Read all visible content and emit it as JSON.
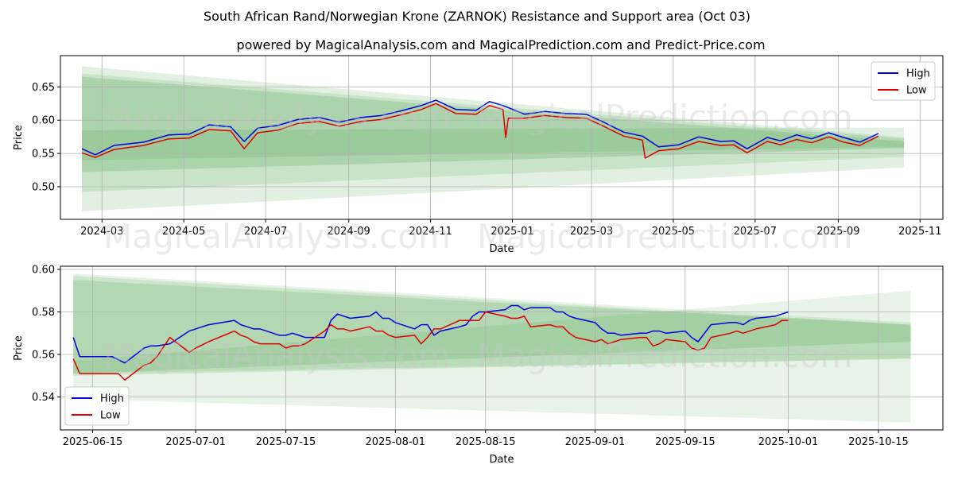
{
  "header": {
    "title": "South African Rand/Norwegian Krone (ZARNOK) Resistance and Support area (Oct 03)",
    "subtitle": "powered by MagicalAnalysis.com and MagicalPrediction.com and Predict-Price.com"
  },
  "watermarks": [
    "MagicalAnalysis.com",
    "MagicalPrediction.com"
  ],
  "colors": {
    "high": "#0000dd",
    "low": "#dd0000",
    "band": "#3a9a3a",
    "grid": "#b0b0b0"
  },
  "chart_data": [
    {
      "type": "line",
      "title": "",
      "xlabel": "Date",
      "ylabel": "Price",
      "xlim": [
        "2024-01-30",
        "2025-11-18"
      ],
      "ylim": [
        0.451,
        0.697
      ],
      "yticks": [
        0.5,
        0.55,
        0.6,
        0.65
      ],
      "ytick_labels": [
        "0.50",
        "0.55",
        "0.60",
        "0.65"
      ],
      "xticks": [
        "2024-03-01",
        "2024-05-01",
        "2024-07-01",
        "2024-09-01",
        "2024-11-01",
        "2025-01-01",
        "2025-03-01",
        "2025-05-01",
        "2025-07-01",
        "2025-09-01",
        "2025-11-01"
      ],
      "xtick_labels": [
        "2024-03",
        "2024-05",
        "2024-07",
        "2024-09",
        "2024-11",
        "2025-01",
        "2025-03",
        "2025-05",
        "2025-07",
        "2025-09",
        "2025-11"
      ],
      "legend": {
        "position": "top-right",
        "entries": [
          "High",
          "Low"
        ]
      },
      "grid": true,
      "bands": [
        {
          "x": [
            "2024-02-15",
            "2025-10-20"
          ],
          "upper": [
            0.681,
            0.574
          ],
          "lower": [
            0.463,
            0.529
          ],
          "opacity": 0.15
        },
        {
          "x": [
            "2024-02-15",
            "2025-10-20"
          ],
          "upper": [
            0.67,
            0.572
          ],
          "lower": [
            0.492,
            0.545
          ],
          "opacity": 0.15
        },
        {
          "x": [
            "2024-02-15",
            "2025-10-20"
          ],
          "upper": [
            0.665,
            0.568
          ],
          "lower": [
            0.522,
            0.558
          ],
          "opacity": 0.2
        },
        {
          "x": [
            "2024-02-15",
            "2025-10-20"
          ],
          "upper": [
            0.585,
            0.589
          ],
          "lower": [
            0.54,
            0.56
          ],
          "opacity": 0.15
        }
      ],
      "series": [
        {
          "name": "High",
          "color": "#0000dd",
          "x": [
            "2024-02-15",
            "2024-02-25",
            "2024-03-10",
            "2024-04-01",
            "2024-04-20",
            "2024-05-05",
            "2024-05-20",
            "2024-06-05",
            "2024-06-15",
            "2024-06-25",
            "2024-07-10",
            "2024-07-25",
            "2024-08-10",
            "2024-08-25",
            "2024-09-10",
            "2024-09-25",
            "2024-10-10",
            "2024-10-25",
            "2024-11-05",
            "2024-11-20",
            "2024-12-05",
            "2024-12-15",
            "2024-12-25",
            "2025-01-10",
            "2025-01-25",
            "2025-02-10",
            "2025-02-25",
            "2025-03-10",
            "2025-03-25",
            "2025-04-08",
            "2025-04-20",
            "2025-05-05",
            "2025-05-20",
            "2025-06-05",
            "2025-06-15",
            "2025-06-25",
            "2025-07-10",
            "2025-07-20",
            "2025-08-01",
            "2025-08-12",
            "2025-08-25",
            "2025-09-05",
            "2025-09-17",
            "2025-10-01"
          ],
          "values": [
            0.557,
            0.548,
            0.562,
            0.567,
            0.578,
            0.579,
            0.593,
            0.59,
            0.568,
            0.588,
            0.592,
            0.601,
            0.604,
            0.597,
            0.604,
            0.607,
            0.614,
            0.622,
            0.63,
            0.616,
            0.615,
            0.628,
            0.622,
            0.609,
            0.613,
            0.61,
            0.609,
            0.597,
            0.582,
            0.576,
            0.56,
            0.563,
            0.575,
            0.568,
            0.569,
            0.557,
            0.574,
            0.569,
            0.578,
            0.572,
            0.581,
            0.574,
            0.567,
            0.58
          ]
        },
        {
          "name": "Low",
          "color": "#dd0000",
          "x": [
            "2024-02-15",
            "2024-02-25",
            "2024-03-10",
            "2024-04-01",
            "2024-04-20",
            "2024-05-05",
            "2024-05-20",
            "2024-06-05",
            "2024-06-15",
            "2024-06-25",
            "2024-07-10",
            "2024-07-25",
            "2024-08-10",
            "2024-08-25",
            "2024-09-10",
            "2024-09-25",
            "2024-10-10",
            "2024-10-25",
            "2024-11-05",
            "2024-11-20",
            "2024-12-05",
            "2024-12-15",
            "2024-12-25",
            "2024-12-27",
            "2024-12-29",
            "2025-01-10",
            "2025-01-25",
            "2025-02-10",
            "2025-02-25",
            "2025-03-10",
            "2025-03-25",
            "2025-04-08",
            "2025-04-10",
            "2025-04-20",
            "2025-05-05",
            "2025-05-20",
            "2025-06-05",
            "2025-06-15",
            "2025-06-25",
            "2025-07-10",
            "2025-07-20",
            "2025-08-01",
            "2025-08-12",
            "2025-08-25",
            "2025-09-05",
            "2025-09-17",
            "2025-10-01"
          ],
          "values": [
            0.551,
            0.544,
            0.556,
            0.562,
            0.572,
            0.573,
            0.586,
            0.584,
            0.557,
            0.581,
            0.585,
            0.595,
            0.598,
            0.591,
            0.598,
            0.601,
            0.608,
            0.616,
            0.625,
            0.61,
            0.609,
            0.622,
            0.616,
            0.574,
            0.603,
            0.603,
            0.607,
            0.604,
            0.603,
            0.591,
            0.576,
            0.57,
            0.543,
            0.554,
            0.557,
            0.568,
            0.562,
            0.563,
            0.551,
            0.568,
            0.563,
            0.571,
            0.566,
            0.575,
            0.567,
            0.562,
            0.576
          ]
        }
      ]
    },
    {
      "type": "line",
      "title": "",
      "xlabel": "Date",
      "ylabel": "Price",
      "xlim": [
        "2025-06-10",
        "2025-10-25"
      ],
      "ylim": [
        0.5245,
        0.6015
      ],
      "yticks": [
        0.54,
        0.56,
        0.58,
        0.6
      ],
      "ytick_labels": [
        "0.54",
        "0.56",
        "0.58",
        "0.60"
      ],
      "xticks": [
        "2025-06-15",
        "2025-07-01",
        "2025-07-15",
        "2025-08-01",
        "2025-08-15",
        "2025-09-01",
        "2025-09-15",
        "2025-10-01",
        "2025-10-15"
      ],
      "xtick_labels": [
        "2025-06-15",
        "2025-07-01",
        "2025-07-15",
        "2025-08-01",
        "2025-08-15",
        "2025-09-01",
        "2025-09-15",
        "2025-10-01",
        "2025-10-15"
      ],
      "legend": {
        "position": "bottom-left",
        "entries": [
          "High",
          "Low"
        ]
      },
      "grid": true,
      "bands": [
        {
          "x": [
            "2025-06-12",
            "2025-10-20"
          ],
          "upper": [
            0.598,
            0.575
          ],
          "lower": [
            0.539,
            0.528
          ],
          "opacity": 0.12
        },
        {
          "x": [
            "2025-06-12",
            "2025-10-20"
          ],
          "upper": [
            0.597,
            0.574
          ],
          "lower": [
            0.55,
            0.558
          ],
          "opacity": 0.15
        },
        {
          "x": [
            "2025-06-12",
            "2025-10-20"
          ],
          "upper": [
            0.595,
            0.574
          ],
          "lower": [
            0.551,
            0.566
          ],
          "opacity": 0.18
        },
        {
          "x": [
            "2025-06-12",
            "2025-10-20"
          ],
          "upper": [
            0.557,
            0.59
          ],
          "lower": [
            0.551,
            0.558
          ],
          "opacity": 0.12
        }
      ],
      "series": [
        {
          "name": "High",
          "color": "#0000dd",
          "x": [
            "2025-06-12",
            "2025-06-13",
            "2025-06-16",
            "2025-06-18",
            "2025-06-20",
            "2025-06-23",
            "2025-06-24",
            "2025-06-25",
            "2025-06-27",
            "2025-06-30",
            "2025-07-01",
            "2025-07-03",
            "2025-07-07",
            "2025-07-08",
            "2025-07-09",
            "2025-07-10",
            "2025-07-11",
            "2025-07-14",
            "2025-07-15",
            "2025-07-16",
            "2025-07-17",
            "2025-07-18",
            "2025-07-21",
            "2025-07-22",
            "2025-07-23",
            "2025-07-24",
            "2025-07-25",
            "2025-07-28",
            "2025-07-29",
            "2025-07-30",
            "2025-07-31",
            "2025-08-01",
            "2025-08-04",
            "2025-08-05",
            "2025-08-06",
            "2025-08-07",
            "2025-08-08",
            "2025-08-11",
            "2025-08-12",
            "2025-08-13",
            "2025-08-14",
            "2025-08-15",
            "2025-08-18",
            "2025-08-19",
            "2025-08-20",
            "2025-08-21",
            "2025-08-22",
            "2025-08-25",
            "2025-08-26",
            "2025-08-27",
            "2025-08-28",
            "2025-08-29",
            "2025-09-01",
            "2025-09-02",
            "2025-09-03",
            "2025-09-04",
            "2025-09-05",
            "2025-09-08",
            "2025-09-09",
            "2025-09-10",
            "2025-09-11",
            "2025-09-12",
            "2025-09-15",
            "2025-09-16",
            "2025-09-17",
            "2025-09-18",
            "2025-09-19",
            "2025-09-22",
            "2025-09-23",
            "2025-09-24",
            "2025-09-25",
            "2025-09-26",
            "2025-09-29",
            "2025-09-30",
            "2025-10-01"
          ],
          "values": [
            0.568,
            0.559,
            0.559,
            0.559,
            0.556,
            0.563,
            0.564,
            0.564,
            0.565,
            0.571,
            0.572,
            0.574,
            0.576,
            0.574,
            0.573,
            0.572,
            0.572,
            0.569,
            0.569,
            0.57,
            0.569,
            0.568,
            0.568,
            0.576,
            0.579,
            0.578,
            0.577,
            0.578,
            0.58,
            0.577,
            0.577,
            0.575,
            0.572,
            0.574,
            0.574,
            0.569,
            0.571,
            0.573,
            0.574,
            0.578,
            0.58,
            0.58,
            0.581,
            0.583,
            0.583,
            0.581,
            0.582,
            0.582,
            0.58,
            0.58,
            0.578,
            0.577,
            0.575,
            0.572,
            0.57,
            0.57,
            0.569,
            0.57,
            0.57,
            0.571,
            0.571,
            0.57,
            0.571,
            0.568,
            0.566,
            0.57,
            0.574,
            0.575,
            0.575,
            0.574,
            0.576,
            0.577,
            0.578,
            0.579,
            0.58
          ]
        },
        {
          "name": "Low",
          "color": "#dd0000",
          "x": [
            "2025-06-12",
            "2025-06-13",
            "2025-06-16",
            "2025-06-18",
            "2025-06-19",
            "2025-06-20",
            "2025-06-23",
            "2025-06-24",
            "2025-06-25",
            "2025-06-27",
            "2025-06-30",
            "2025-07-01",
            "2025-07-03",
            "2025-07-07",
            "2025-07-08",
            "2025-07-09",
            "2025-07-10",
            "2025-07-11",
            "2025-07-14",
            "2025-07-15",
            "2025-07-16",
            "2025-07-17",
            "2025-07-18",
            "2025-07-21",
            "2025-07-22",
            "2025-07-23",
            "2025-07-24",
            "2025-07-25",
            "2025-07-28",
            "2025-07-29",
            "2025-07-30",
            "2025-07-31",
            "2025-08-01",
            "2025-08-04",
            "2025-08-05",
            "2025-08-06",
            "2025-08-07",
            "2025-08-08",
            "2025-08-11",
            "2025-08-12",
            "2025-08-13",
            "2025-08-14",
            "2025-08-15",
            "2025-08-18",
            "2025-08-19",
            "2025-08-20",
            "2025-08-21",
            "2025-08-22",
            "2025-08-25",
            "2025-08-26",
            "2025-08-27",
            "2025-08-28",
            "2025-08-29",
            "2025-09-01",
            "2025-09-02",
            "2025-09-03",
            "2025-09-04",
            "2025-09-05",
            "2025-09-08",
            "2025-09-09",
            "2025-09-10",
            "2025-09-11",
            "2025-09-12",
            "2025-09-15",
            "2025-09-16",
            "2025-09-17",
            "2025-09-18",
            "2025-09-19",
            "2025-09-22",
            "2025-09-23",
            "2025-09-24",
            "2025-09-25",
            "2025-09-26",
            "2025-09-29",
            "2025-09-30",
            "2025-10-01"
          ],
          "values": [
            0.558,
            0.551,
            0.551,
            0.551,
            0.551,
            0.548,
            0.555,
            0.556,
            0.559,
            0.568,
            0.561,
            0.563,
            0.566,
            0.571,
            0.569,
            0.568,
            0.566,
            0.565,
            0.565,
            0.563,
            0.564,
            0.564,
            0.565,
            0.571,
            0.574,
            0.572,
            0.572,
            0.571,
            0.573,
            0.571,
            0.571,
            0.569,
            0.568,
            0.569,
            0.565,
            0.568,
            0.572,
            0.572,
            0.576,
            0.576,
            0.576,
            0.576,
            0.58,
            0.578,
            0.577,
            0.577,
            0.578,
            0.573,
            0.574,
            0.573,
            0.573,
            0.57,
            0.568,
            0.566,
            0.567,
            0.565,
            0.566,
            0.567,
            0.568,
            0.568,
            0.564,
            0.565,
            0.567,
            0.566,
            0.563,
            0.562,
            0.563,
            0.568,
            0.57,
            0.571,
            0.57,
            0.571,
            0.572,
            0.574,
            0.576,
            0.576
          ]
        }
      ]
    }
  ]
}
